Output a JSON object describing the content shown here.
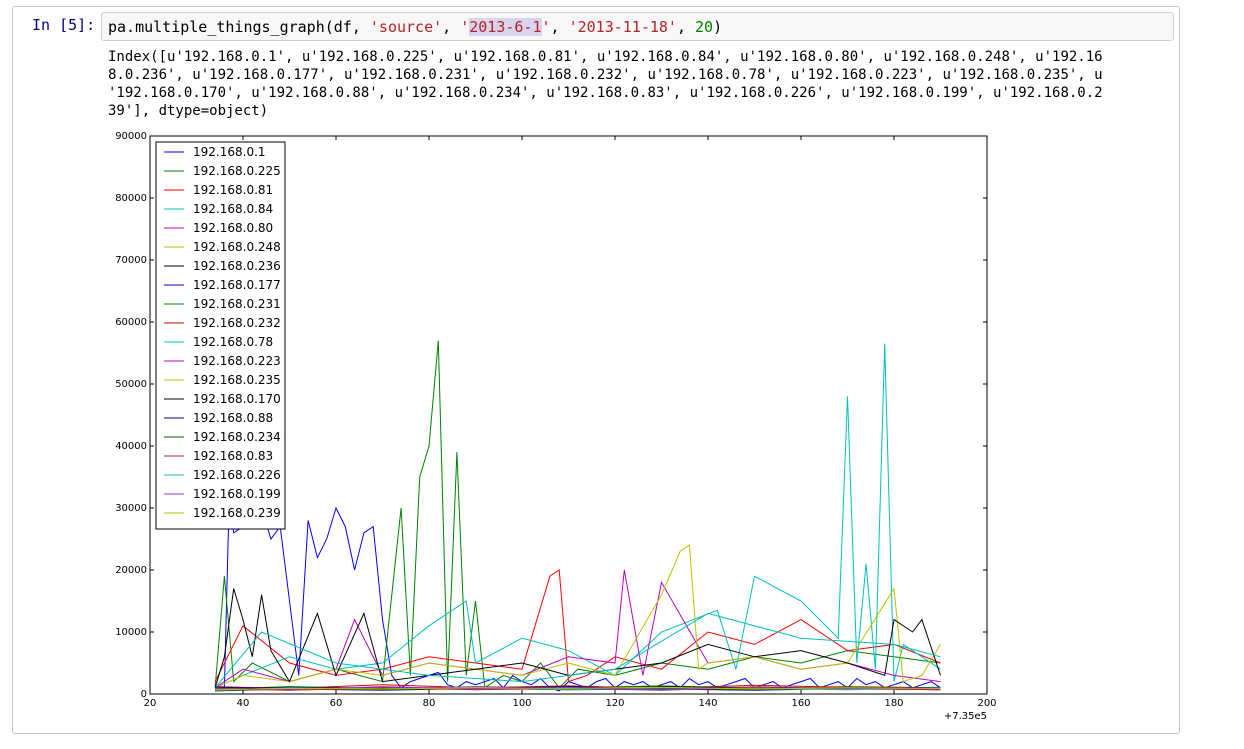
{
  "cell": {
    "prompt": "In [5]:",
    "code": {
      "call": "pa.multiple_things_graph(df, ",
      "arg1": "'source'",
      "sep1": ", ",
      "arg2_q1": "'",
      "arg2_hl": "2013-6-1",
      "arg2_q2": "'",
      "sep2": ", ",
      "arg3": "'2013-11-18'",
      "sep3": ", ",
      "arg4": "20",
      "close": ")"
    },
    "output_lines": [
      "Index([u'192.168.0.1', u'192.168.0.225', u'192.168.0.81', u'192.168.0.84', u'192.168.0.80', u'192.168.0.248', u'192.16",
      "8.0.236', u'192.168.0.177', u'192.168.0.231', u'192.168.0.232', u'192.168.0.78', u'192.168.0.223', u'192.168.0.235', u",
      "'192.168.0.170', u'192.168.0.88', u'192.168.0.234', u'192.168.0.83', u'192.168.0.226', u'192.168.0.199', u'192.168.0.2",
      "39'], dtype=object)"
    ]
  },
  "chart_data": {
    "type": "line",
    "title": "",
    "xlabel": "",
    "ylabel": "",
    "x_offset_label": "+7.35e5",
    "xlim": [
      20,
      200
    ],
    "ylim": [
      0,
      90000
    ],
    "xticks": [
      "20",
      "40",
      "60",
      "80",
      "100",
      "120",
      "140",
      "160",
      "180",
      "200"
    ],
    "yticks": [
      "0",
      "10000",
      "20000",
      "30000",
      "40000",
      "50000",
      "60000",
      "70000",
      "80000",
      "90000"
    ],
    "legend_position": "top-left",
    "grid": false,
    "series": [
      {
        "name": "192.168.0.1",
        "color": "#0000ff",
        "x": [
          34,
          36,
          37,
          38,
          40,
          42,
          44,
          46,
          48,
          50,
          52,
          54,
          56,
          58,
          60,
          62,
          64,
          66,
          68,
          70,
          72,
          74,
          76,
          78,
          80,
          82,
          84,
          86,
          88,
          90,
          92,
          94,
          96,
          98,
          100,
          102,
          104,
          106,
          108,
          110,
          112,
          114,
          116,
          118,
          120,
          122,
          124,
          126,
          128,
          130,
          132,
          134,
          136,
          138,
          140,
          142,
          144,
          146,
          148,
          150,
          152,
          154,
          156,
          158,
          160,
          162,
          164,
          166,
          168,
          170,
          172,
          174,
          176,
          178,
          180,
          182,
          184,
          186,
          188,
          190
        ],
        "y": [
          500,
          1000,
          31000,
          26000,
          27000,
          29000,
          30000,
          25000,
          27000,
          15000,
          3000,
          28000,
          22000,
          25000,
          30000,
          27000,
          20000,
          26000,
          27000,
          12000,
          3000,
          1000,
          2000,
          2500,
          3000,
          3500,
          1500,
          1000,
          2000,
          1500,
          2000,
          2500,
          1000,
          3000,
          2000,
          1500,
          2500,
          1000,
          500,
          2000,
          1500,
          1000,
          2000,
          2500,
          1000,
          2000,
          1500,
          2000,
          1000,
          1500,
          2000,
          1000,
          2500,
          1500,
          2000,
          1000,
          1500,
          2000,
          2500,
          1000,
          1500,
          2000,
          1000,
          1500,
          2000,
          2500,
          1000,
          1500,
          2000,
          1000,
          2500,
          1500,
          2000,
          1000,
          1500,
          2000,
          1000,
          1500,
          2000,
          1000
        ]
      },
      {
        "name": "192.168.0.225",
        "color": "#008000",
        "x": [
          34,
          36,
          38,
          42,
          50,
          60,
          70,
          74,
          76,
          78,
          80,
          82,
          84,
          86,
          88,
          90,
          92,
          94,
          96,
          100,
          104,
          108,
          112,
          120,
          130,
          140,
          150,
          160,
          170,
          180,
          190
        ],
        "y": [
          1000,
          19000,
          2000,
          5000,
          2000,
          4000,
          2000,
          30000,
          3000,
          35000,
          40000,
          57000,
          2000,
          39000,
          3000,
          15000,
          1000,
          2000,
          3000,
          2000,
          5000,
          1000,
          4000,
          3000,
          5000,
          4000,
          6000,
          5000,
          7000,
          6000,
          5000
        ]
      },
      {
        "name": "192.168.0.81",
        "color": "#ff0000",
        "x": [
          34,
          40,
          50,
          60,
          70,
          80,
          90,
          100,
          106,
          108,
          110,
          114,
          120,
          130,
          140,
          150,
          160,
          170,
          180,
          190
        ],
        "y": [
          2000,
          11000,
          5000,
          3000,
          4000,
          6000,
          5000,
          4000,
          19000,
          20000,
          2000,
          3000,
          6000,
          4000,
          10000,
          8000,
          12000,
          7000,
          8000,
          5000
        ]
      },
      {
        "name": "192.168.0.84",
        "color": "#00bfbf",
        "x": [
          34,
          40,
          50,
          60,
          70,
          80,
          88,
          90,
          100,
          110,
          120,
          130,
          142,
          146,
          150,
          160,
          168,
          170,
          172,
          174,
          176,
          178,
          180,
          182,
          186,
          190
        ],
        "y": [
          1000,
          3000,
          6000,
          4000,
          5000,
          11000,
          15000,
          5000,
          9000,
          7000,
          3000,
          10000,
          13500,
          4000,
          19000,
          15000,
          9000,
          48000,
          5000,
          21000,
          4000,
          56500,
          2000,
          8000,
          6000,
          4000
        ]
      },
      {
        "name": "192.168.0.80",
        "color": "#bf00bf",
        "x": [
          34,
          40,
          50,
          60,
          64,
          70,
          80,
          90,
          100,
          110,
          120,
          122,
          126,
          130,
          140,
          150,
          160,
          170,
          180,
          190
        ],
        "y": [
          1000,
          4000,
          2000,
          4000,
          12000,
          3000,
          5000,
          4000,
          3000,
          6000,
          5000,
          20000,
          3000,
          18000,
          5000,
          6000,
          4000,
          5000,
          3000,
          2000
        ]
      },
      {
        "name": "192.168.0.248",
        "color": "#bfbf00",
        "x": [
          34,
          40,
          50,
          60,
          70,
          80,
          90,
          100,
          110,
          120,
          130,
          134,
          136,
          138,
          140,
          150,
          160,
          170,
          180,
          182,
          186,
          190
        ],
        "y": [
          1000,
          3000,
          2000,
          4000,
          3000,
          5000,
          4000,
          3000,
          5000,
          3000,
          16000,
          23000,
          24000,
          4000,
          5000,
          6000,
          4000,
          5000,
          17000,
          2000,
          3000,
          8000
        ]
      },
      {
        "name": "192.168.0.236",
        "color": "#000000",
        "x": [
          34,
          36,
          38,
          40,
          42,
          44,
          46,
          50,
          56,
          60,
          66,
          70,
          80,
          90,
          100,
          110,
          120,
          130,
          140,
          150,
          160,
          170,
          178,
          180,
          184,
          186,
          190
        ],
        "y": [
          1000,
          6000,
          17000,
          12000,
          6000,
          16000,
          7000,
          2000,
          13000,
          3000,
          13000,
          2000,
          3000,
          4000,
          5000,
          3000,
          4000,
          5000,
          8000,
          6000,
          7000,
          5000,
          3000,
          12000,
          10000,
          12000,
          3000
        ]
      },
      {
        "name": "192.168.0.177",
        "color": "#0000bf",
        "x": [
          34,
          50,
          70,
          90,
          110,
          130,
          150,
          170,
          190
        ],
        "y": [
          500,
          800,
          600,
          900,
          700,
          800,
          600,
          900,
          700
        ]
      },
      {
        "name": "192.168.0.231",
        "color": "#007f00",
        "x": [
          34,
          50,
          70,
          90,
          110,
          130,
          150,
          170,
          190
        ],
        "y": [
          800,
          1200,
          900,
          1100,
          1000,
          1300,
          900,
          1200,
          1000
        ]
      },
      {
        "name": "192.168.0.232",
        "color": "#d00000",
        "x": [
          34,
          50,
          70,
          90,
          110,
          130,
          150,
          170,
          190
        ],
        "y": [
          1200,
          900,
          1500,
          1000,
          1300,
          900,
          1400,
          1100,
          1000
        ]
      },
      {
        "name": "192.168.0.78",
        "color": "#00bfbf",
        "x": [
          34,
          44,
          60,
          80,
          100,
          120,
          140,
          160,
          180,
          190
        ],
        "y": [
          1000,
          10000,
          5000,
          3000,
          2000,
          4000,
          13000,
          9000,
          8000,
          6000
        ]
      },
      {
        "name": "192.168.0.223",
        "color": "#bf00bf",
        "x": [
          34,
          50,
          70,
          90,
          110,
          130,
          150,
          170,
          190
        ],
        "y": [
          600,
          1000,
          800,
          1200,
          900,
          1100,
          800,
          1000,
          900
        ]
      },
      {
        "name": "192.168.0.235",
        "color": "#bfbf00",
        "x": [
          34,
          50,
          70,
          90,
          110,
          130,
          150,
          170,
          190
        ],
        "y": [
          900,
          700,
          1100,
          800,
          1000,
          700,
          1200,
          900,
          800
        ]
      },
      {
        "name": "192.168.0.170",
        "color": "#000000",
        "x": [
          34,
          50,
          70,
          90,
          110,
          130,
          150,
          170,
          190
        ],
        "y": [
          700,
          1100,
          900,
          1000,
          800,
          1200,
          1000,
          800,
          1100
        ]
      },
      {
        "name": "192.168.0.88",
        "color": "#00008b",
        "x": [
          34,
          50,
          70,
          90,
          110,
          130,
          150,
          170,
          190
        ],
        "y": [
          1100,
          800,
          1000,
          900,
          1200,
          800,
          1100,
          900,
          1000
        ]
      },
      {
        "name": "192.168.0.234",
        "color": "#006400",
        "x": [
          34,
          50,
          70,
          90,
          110,
          130,
          150,
          170,
          190
        ],
        "y": [
          500,
          900,
          700,
          1000,
          800,
          900,
          700,
          1000,
          800
        ]
      },
      {
        "name": "192.168.0.83",
        "color": "#b22222",
        "x": [
          34,
          50,
          70,
          90,
          110,
          130,
          150,
          170,
          190
        ],
        "y": [
          800,
          600,
          1000,
          700,
          900,
          600,
          1100,
          800,
          700
        ]
      },
      {
        "name": "192.168.0.226",
        "color": "#20b2aa",
        "x": [
          34,
          50,
          70,
          90,
          110,
          130,
          150,
          170,
          190
        ],
        "y": [
          600,
          1000,
          800,
          1100,
          700,
          1000,
          900,
          700,
          1000
        ]
      },
      {
        "name": "192.168.0.199",
        "color": "#9932cc",
        "x": [
          34,
          50,
          70,
          90,
          110,
          130,
          150,
          170,
          190
        ],
        "y": [
          900,
          700,
          1200,
          800,
          1000,
          700,
          1000,
          900,
          800
        ]
      },
      {
        "name": "192.168.0.239",
        "color": "#bfbf00",
        "x": [
          34,
          50,
          70,
          90,
          110,
          130,
          150,
          170,
          190
        ],
        "y": [
          700,
          900,
          800,
          1000,
          900,
          1100,
          800,
          1000,
          900
        ]
      }
    ]
  }
}
